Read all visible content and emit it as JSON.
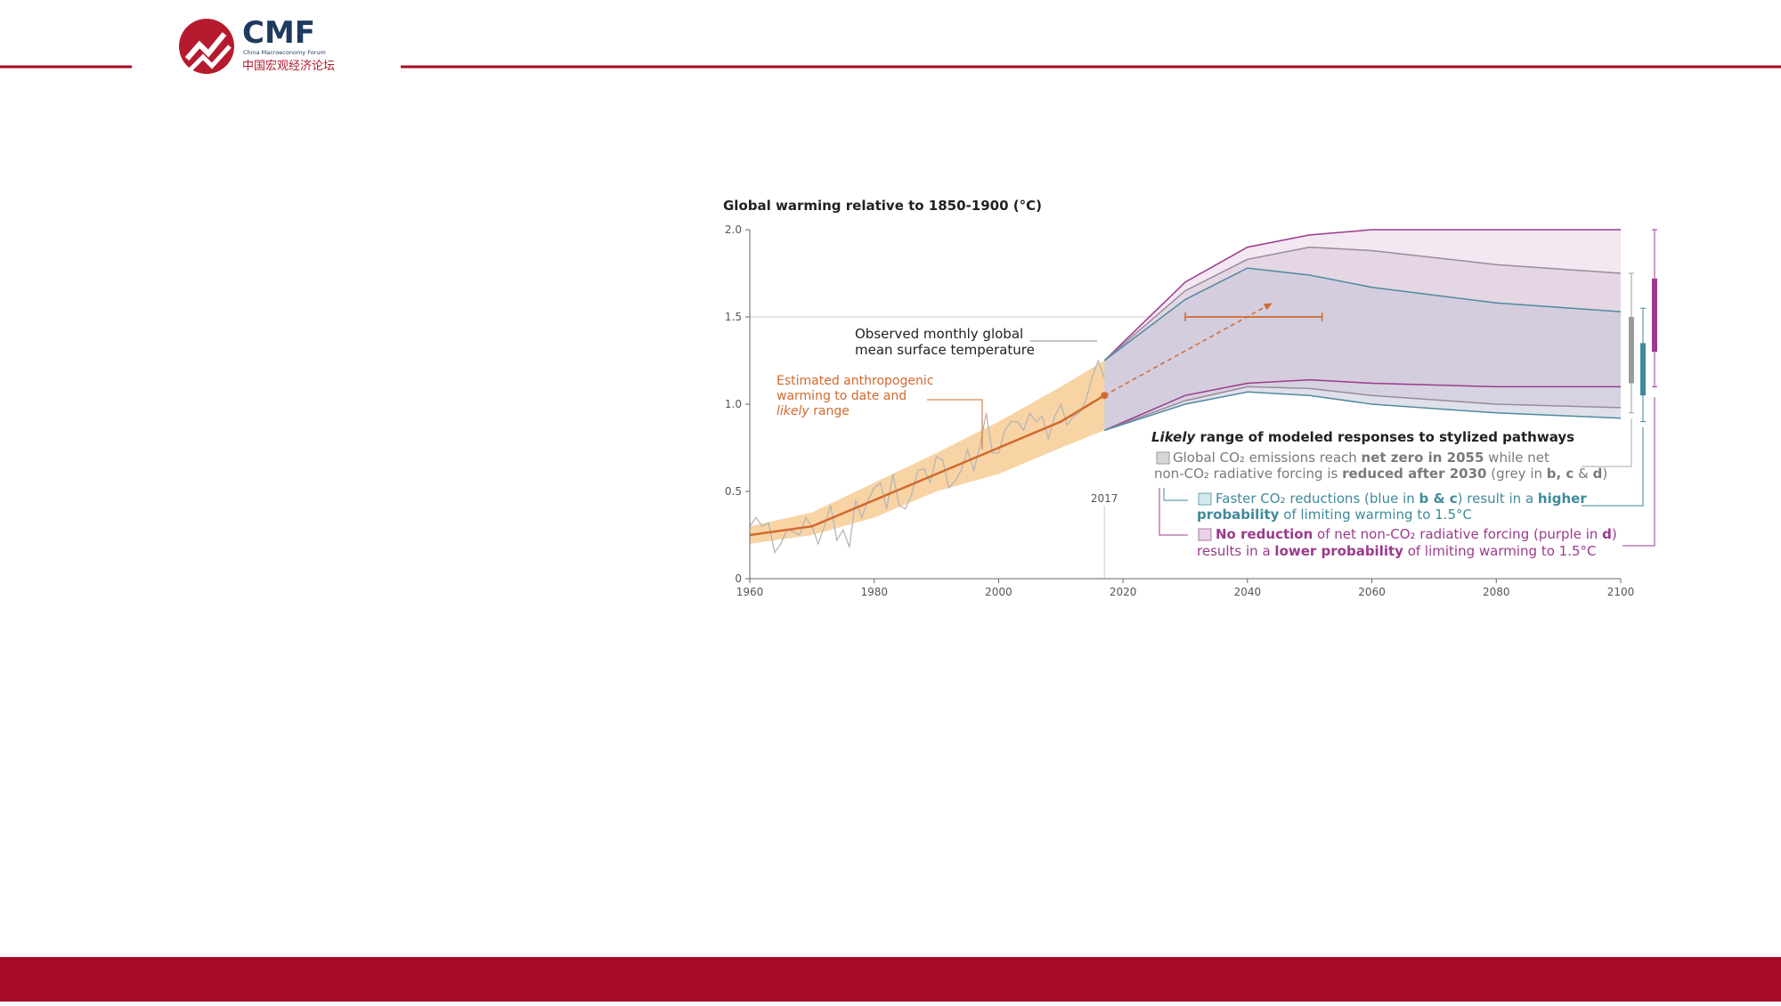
{
  "header": {
    "logo_title": "CMF",
    "logo_subtitle": "China Macroeconomy Forum",
    "logo_chinese": "中国宏观经济论坛"
  },
  "chart_data": {
    "type": "line",
    "title": "Global warming relative to 1850-1900 (°C)",
    "xlim": [
      1960,
      2100
    ],
    "ylim": [
      0,
      2
    ],
    "xticks": [
      1960,
      1980,
      2000,
      2020,
      2040,
      2060,
      2080,
      2100
    ],
    "yticks": [
      0,
      0.5,
      {
        "value": 1,
        "label": "1.0"
      },
      1.5,
      {
        "value": 2,
        "label": "2.0"
      }
    ],
    "reference_line": 1.5,
    "event_year": 2017,
    "observed": {
      "color": "#b5b5b5",
      "x": [
        1960,
        1961,
        1962,
        1963,
        1964,
        1965,
        1966,
        1967,
        1968,
        1969,
        1970,
        1971,
        1972,
        1973,
        1974,
        1975,
        1976,
        1977,
        1978,
        1979,
        1980,
        1981,
        1982,
        1983,
        1984,
        1985,
        1986,
        1987,
        1988,
        1989,
        1990,
        1991,
        1992,
        1993,
        1994,
        1995,
        1996,
        1997,
        1998,
        1999,
        2000,
        2001,
        2002,
        2003,
        2004,
        2005,
        2006,
        2007,
        2008,
        2009,
        2010,
        2011,
        2012,
        2013,
        2014,
        2015,
        2016,
        2017
      ],
      "values": [
        0.3,
        0.35,
        0.3,
        0.32,
        0.15,
        0.2,
        0.28,
        0.27,
        0.25,
        0.35,
        0.3,
        0.2,
        0.3,
        0.42,
        0.22,
        0.28,
        0.18,
        0.45,
        0.35,
        0.45,
        0.52,
        0.55,
        0.4,
        0.6,
        0.42,
        0.4,
        0.48,
        0.62,
        0.63,
        0.55,
        0.7,
        0.68,
        0.52,
        0.56,
        0.62,
        0.74,
        0.62,
        0.76,
        0.95,
        0.72,
        0.72,
        0.85,
        0.9,
        0.9,
        0.85,
        0.95,
        0.9,
        0.93,
        0.8,
        0.93,
        1.0,
        0.88,
        0.93,
        0.95,
        1.02,
        1.15,
        1.25,
        1.15
      ]
    },
    "anthropogenic": {
      "color": "#d2692e",
      "band_color": "#f6c98f",
      "x": [
        1960,
        1970,
        1980,
        1990,
        2000,
        2010,
        2017
      ],
      "values": [
        0.25,
        0.3,
        0.45,
        0.6,
        0.75,
        0.9,
        1.05
      ],
      "lower": [
        0.2,
        0.25,
        0.35,
        0.5,
        0.6,
        0.75,
        0.85
      ],
      "upper": [
        0.3,
        0.38,
        0.55,
        0.72,
        0.9,
        1.1,
        1.25
      ]
    },
    "projection_arrow": {
      "x": [
        2017,
        2044
      ],
      "values": [
        1.05,
        1.58
      ]
    },
    "crossing": {
      "value": 1.5,
      "xmin": 2030,
      "xmax": 2052
    },
    "scenarios": {
      "x": [
        2017,
        2030,
        2040,
        2050,
        2060,
        2080,
        2100
      ],
      "ranges": [
        {
          "color": "#9b3a8c",
          "fill": "#ead3e6",
          "upper": [
            1.25,
            1.7,
            1.9,
            1.97,
            2.0,
            2.0,
            2.0
          ],
          "lower": [
            0.85,
            1.05,
            1.12,
            1.14,
            1.12,
            1.1,
            1.1
          ]
        },
        {
          "color": "#9a8a9c",
          "fill": "#d9c9d9",
          "upper": [
            1.25,
            1.65,
            1.83,
            1.9,
            1.88,
            1.8,
            1.75
          ],
          "lower": [
            0.85,
            1.02,
            1.1,
            1.09,
            1.05,
            1.0,
            0.98
          ]
        },
        {
          "color": "#4f8aa0",
          "fill": "#c4c6d9",
          "upper": [
            1.25,
            1.6,
            1.78,
            1.74,
            1.67,
            1.58,
            1.53
          ],
          "lower": [
            0.85,
            1.0,
            1.07,
            1.05,
            1.0,
            0.95,
            0.92
          ]
        }
      ]
    },
    "range_bars": [
      {
        "color": "#9a9a9a",
        "whisker": [
          0.95,
          1.75
        ],
        "box": [
          1.12,
          1.5
        ]
      },
      {
        "color": "#3f8a9b",
        "whisker": [
          0.9,
          1.55
        ],
        "box": [
          1.05,
          1.35
        ]
      },
      {
        "color": "#9b3a8c",
        "whisker": [
          1.1,
          2.0
        ],
        "box": [
          1.3,
          1.72
        ]
      }
    ],
    "observed_label": [
      "Observed monthly global",
      "mean surface temperature"
    ],
    "anthropogenic_label": [
      "Estimated anthropogenic",
      "warming to date and",
      "likely",
      " range"
    ],
    "legend": {
      "heading": [
        "Likely",
        " range of modeled responses to stylized pathways"
      ],
      "entries": [
        {
          "color": "#d6d6d6",
          "lines": [
            [
              "Global CO₂ emissions reach ",
              "net zero in 2055",
              " while net"
            ],
            [
              "non-CO₂ radiative forcing is ",
              "reduced after 2030",
              " (grey in ",
              "b, c",
              " & ",
              "d",
              ")"
            ]
          ]
        },
        {
          "color": "#d3e9ec",
          "lines": [
            [
              "Faster CO₂ reductions (blue in ",
              "b & c",
              ") result in a ",
              "higher"
            ],
            [
              "probability",
              " of limiting warming to 1.5°C"
            ]
          ]
        },
        {
          "color": "#ead3e6",
          "lines": [
            [
              "No reduction",
              " of net non-CO₂ radiative forcing (purple in ",
              "d",
              ")"
            ],
            [
              "results in a ",
              "lower probability",
              " of limiting warming to 1.5°C"
            ]
          ]
        }
      ]
    }
  }
}
